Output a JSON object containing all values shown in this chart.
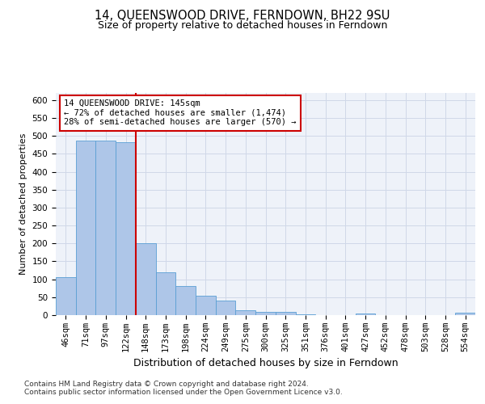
{
  "title": "14, QUEENSWOOD DRIVE, FERNDOWN, BH22 9SU",
  "subtitle": "Size of property relative to detached houses in Ferndown",
  "xlabel": "Distribution of detached houses by size in Ferndown",
  "ylabel": "Number of detached properties",
  "categories": [
    "46sqm",
    "71sqm",
    "97sqm",
    "122sqm",
    "148sqm",
    "173sqm",
    "198sqm",
    "224sqm",
    "249sqm",
    "275sqm",
    "300sqm",
    "325sqm",
    "351sqm",
    "376sqm",
    "401sqm",
    "427sqm",
    "452sqm",
    "478sqm",
    "503sqm",
    "528sqm",
    "554sqm"
  ],
  "values": [
    105,
    487,
    487,
    482,
    200,
    120,
    82,
    55,
    40,
    14,
    9,
    10,
    2,
    1,
    1,
    5,
    0,
    0,
    1,
    0,
    6
  ],
  "bar_color": "#aec6e8",
  "bar_edge_color": "#5a9fd4",
  "property_line_color": "#cc0000",
  "annotation_box_text": "14 QUEENSWOOD DRIVE: 145sqm\n← 72% of detached houses are smaller (1,474)\n28% of semi-detached houses are larger (570) →",
  "annotation_box_color": "#cc0000",
  "ylim": [
    0,
    620
  ],
  "yticks": [
    0,
    50,
    100,
    150,
    200,
    250,
    300,
    350,
    400,
    450,
    500,
    550,
    600
  ],
  "grid_color": "#d0d8e8",
  "background_color": "#eef2f9",
  "footer_text": "Contains HM Land Registry data © Crown copyright and database right 2024.\nContains public sector information licensed under the Open Government Licence v3.0.",
  "title_fontsize": 10.5,
  "subtitle_fontsize": 9,
  "xlabel_fontsize": 9,
  "ylabel_fontsize": 8,
  "tick_fontsize": 7.5,
  "annotation_fontsize": 7.5,
  "footer_fontsize": 6.5
}
